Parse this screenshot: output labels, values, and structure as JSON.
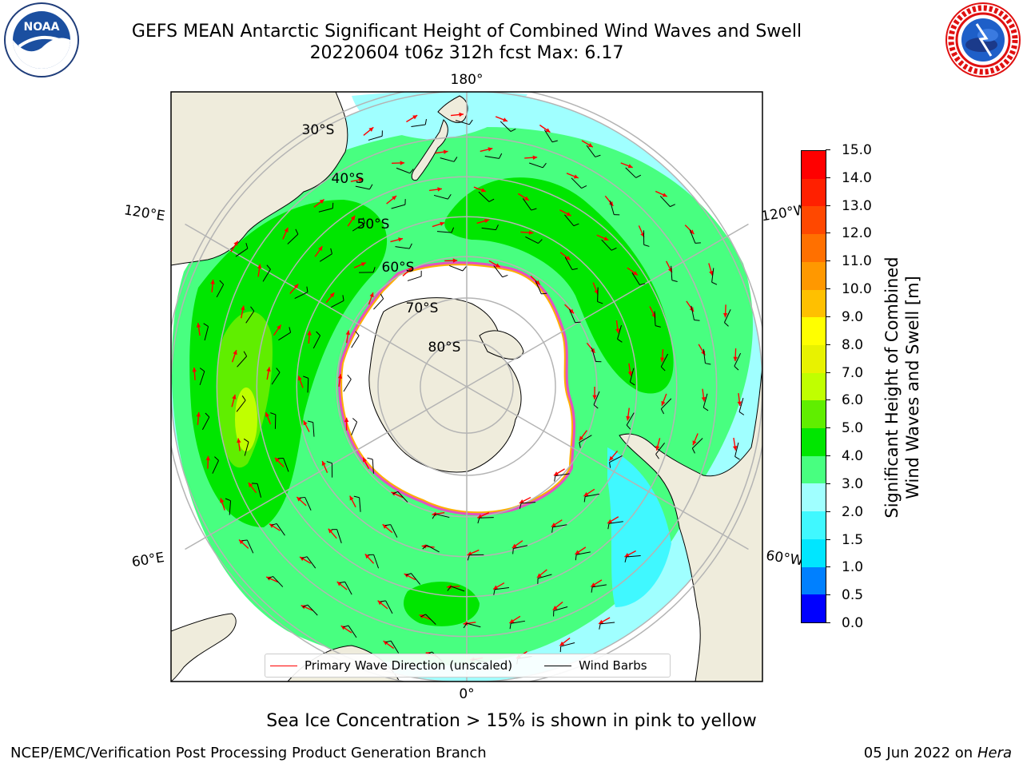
{
  "title": {
    "line1": "GEFS MEAN Antarctic Significant Height of Combined Wind Waves and Swell",
    "line2": "20220604 t06z 312h fcst   Max: 6.17"
  },
  "logos": {
    "left": {
      "name": "noaa-logo",
      "text": "NOAA",
      "ring_text": "NATIONAL OCEANIC AND ATMOSPHERIC ADMINISTRATION · U.S. DEPARTMENT OF COMMERCE"
    },
    "right": {
      "name": "nws-logo",
      "ring_text": "NATIONAL WEATHER SERVICE"
    }
  },
  "map": {
    "longitude_labels": {
      "top": "180°",
      "bottom": "0°",
      "left_upper": "120°E",
      "left_lower": "60°E",
      "right_upper": "120°W",
      "right_lower": "60°W"
    },
    "latitude_labels": [
      "30°S",
      "40°S",
      "50°S",
      "60°S",
      "70°S",
      "80°S"
    ],
    "colors": {
      "land": "#efecdc",
      "ice_sheet": "#ffffff",
      "grid": "#b4b4b4",
      "coast": "#000000",
      "wave_arrow": "#ff0000",
      "wind_barb": "#000000",
      "sea_ice": "#ff33cc"
    }
  },
  "legend": {
    "items": [
      {
        "label": "Primary Wave Direction (unscaled)",
        "color": "#ff0000"
      },
      {
        "label": "Wind Barbs",
        "color": "#000000"
      }
    ]
  },
  "colorbar": {
    "label_line1": "Significant Height of Combined",
    "label_line2": "Wind Waves and Swell [m]",
    "ticks": [
      "0.0",
      "0.5",
      "1.0",
      "1.5",
      "2.0",
      "3.0",
      "4.0",
      "5.0",
      "6.0",
      "7.0",
      "8.0",
      "9.0",
      "10.0",
      "11.0",
      "12.0",
      "13.0",
      "14.0",
      "15.0"
    ],
    "colors": [
      "#0000ff",
      "#0080ff",
      "#00e6ff",
      "#40f8ff",
      "#a0ffff",
      "#48ff80",
      "#00e600",
      "#60ee00",
      "#c0ff00",
      "#e8f200",
      "#ffff00",
      "#ffc000",
      "#ff9800",
      "#ff7000",
      "#ff4800",
      "#ff2000",
      "#ff0000"
    ]
  },
  "footer": {
    "sea_ice_note": "Sea Ice Concentration > 15% is shown in pink to yellow",
    "credit": "NCEP/EMC/Verification Post Processing Product Generation Branch",
    "date": "05 Jun 2022 on",
    "host": "Hera"
  }
}
